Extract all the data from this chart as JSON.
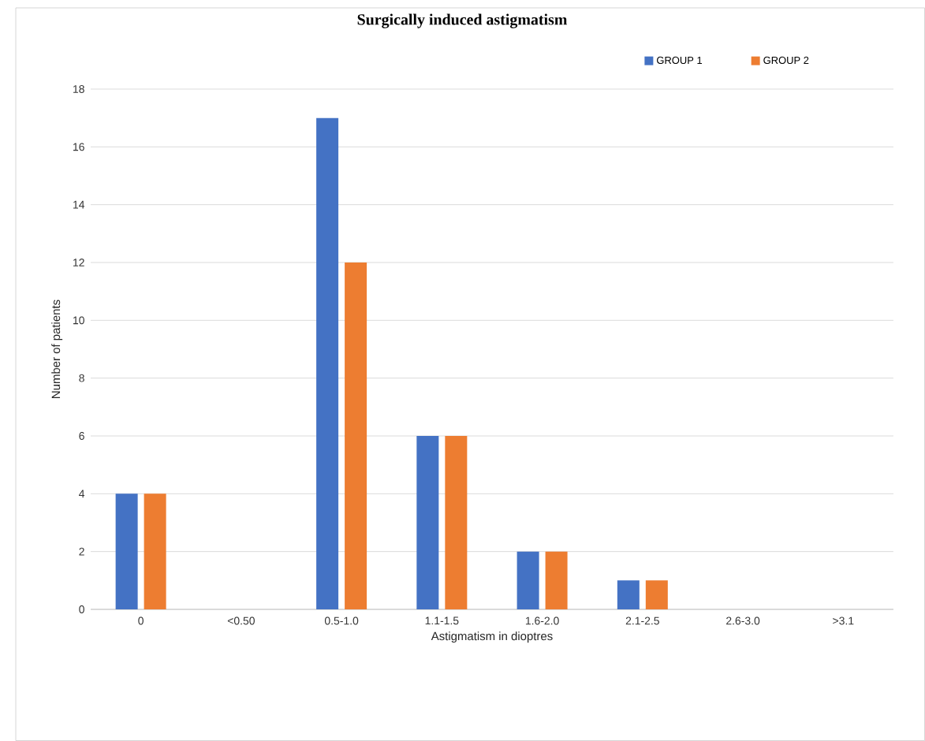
{
  "chart_data": {
    "type": "bar",
    "title": "Surgically induced astigmatism",
    "xlabel": "Astigmatism in dioptres",
    "ylabel": "Number of patients",
    "categories": [
      "0",
      "<0.50",
      "0.5-1.0",
      "1.1-1.5",
      "1.6-2.0",
      "2.1-2.5",
      "2.6-3.0",
      ">3.1"
    ],
    "series": [
      {
        "name": "GROUP 1",
        "color": "#4472c4",
        "values": [
          4,
          0,
          17,
          6,
          2,
          1,
          0,
          0
        ]
      },
      {
        "name": "GROUP 2",
        "color": "#ed7d31",
        "values": [
          4,
          0,
          12,
          6,
          2,
          1,
          0,
          0
        ]
      }
    ],
    "ylim": [
      0,
      18
    ],
    "yticks": [
      0,
      2,
      4,
      6,
      8,
      10,
      12,
      14,
      16,
      18
    ],
    "grid": "y",
    "legend": "top right"
  }
}
